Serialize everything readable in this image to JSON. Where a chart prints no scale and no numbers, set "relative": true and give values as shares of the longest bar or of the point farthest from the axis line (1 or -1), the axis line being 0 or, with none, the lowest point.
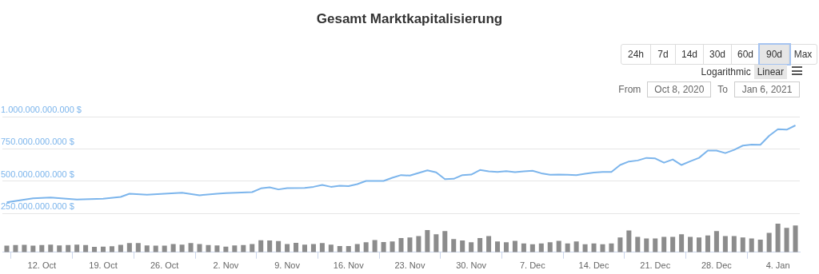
{
  "chart_data": [
    {
      "type": "line",
      "title": "Gesamt Marktkapitalisierung",
      "annotations": [
        "24h",
        "7d",
        "14d",
        "30d",
        "60d",
        "90d",
        "Max",
        "Logarithmic",
        "Linear",
        "From",
        "Oct 8, 2020",
        "To",
        "Jan 6, 2021"
      ],
      "series": [
        {
          "color": "#7cb5ec",
          "x": [
            "2020-10-08",
            "2020-10-11",
            "2020-10-13",
            "2020-10-16",
            "2020-10-19",
            "2020-10-21",
            "2020-10-22",
            "2020-10-24",
            "2020-10-26",
            "2020-10-28",
            "2020-10-30",
            "2020-11-01",
            "2020-11-02",
            "2020-11-05",
            "2020-11-06",
            "2020-11-07",
            "2020-11-08",
            "2020-11-09",
            "2020-11-11",
            "2020-11-12",
            "2020-11-13",
            "2020-11-14",
            "2020-11-15",
            "2020-11-16",
            "2020-11-17",
            "2020-11-18",
            "2020-11-20",
            "2020-11-21",
            "2020-11-22",
            "2020-11-23",
            "2020-11-25",
            "2020-11-26",
            "2020-11-27",
            "2020-11-28",
            "2020-11-29",
            "2020-11-30",
            "2020-12-01",
            "2020-12-02",
            "2020-12-03",
            "2020-12-04",
            "2020-12-05",
            "2020-12-06",
            "2020-12-07",
            "2020-12-08",
            "2020-12-09",
            "2020-12-10",
            "2020-12-11",
            "2020-12-12",
            "2020-12-13",
            "2020-12-14",
            "2020-12-15",
            "2020-12-16",
            "2020-12-17",
            "2020-12-18",
            "2020-12-19",
            "2020-12-20",
            "2020-12-21",
            "2020-12-22",
            "2020-12-23",
            "2020-12-24",
            "2020-12-25",
            "2020-12-26",
            "2020-12-27",
            "2020-12-28",
            "2020-12-29",
            "2020-12-30",
            "2020-12-31",
            "2021-01-01",
            "2021-01-02",
            "2021-01-03",
            "2021-01-04",
            "2021-01-05",
            "2021-01-06"
          ],
          "values": [
            338000000000,
            369000000000,
            375000000000,
            359000000000,
            365000000000,
            379000000000,
            404000000000,
            396000000000,
            404000000000,
            412000000000,
            392000000000,
            404000000000,
            408000000000,
            416000000000,
            445000000000,
            453000000000,
            437000000000,
            447000000000,
            449000000000,
            457000000000,
            472000000000,
            457000000000,
            466000000000,
            462000000000,
            478000000000,
            503000000000,
            503000000000,
            527000000000,
            548000000000,
            544000000000,
            585000000000,
            569000000000,
            517000000000,
            519000000000,
            548000000000,
            552000000000,
            587000000000,
            577000000000,
            572000000000,
            579000000000,
            570000000000,
            577000000000,
            581000000000,
            562000000000,
            550000000000,
            552000000000,
            550000000000,
            548000000000,
            558000000000,
            568000000000,
            572000000000,
            572000000000,
            626000000000,
            653000000000,
            661000000000,
            681000000000,
            677000000000,
            644000000000,
            669000000000,
            626000000000,
            655000000000,
            681000000000,
            737000000000,
            737000000000,
            718000000000,
            743000000000,
            776000000000,
            784000000000,
            782000000000,
            852000000000,
            903000000000,
            899000000000,
            932000000000
          ]
        }
      ],
      "xlim": [
        "2020-10-07T12:00",
        "2021-01-06T12:00"
      ],
      "ylim": [
        250000000000,
        1000000000000
      ],
      "yticks": [
        {
          "value": 250000000000,
          "label": "250.000.000.000 $"
        },
        {
          "value": 500000000000,
          "label": "500.000.000.000 $"
        },
        {
          "value": 750000000000,
          "label": "750.000.000.000 $"
        },
        {
          "value": 1000000000000,
          "label": "1.000.000.000.000 $"
        }
      ],
      "grid": "y",
      "tick_labels": "y"
    },
    {
      "type": "bar",
      "relative": true,
      "color": "#8c8c8c",
      "x": [
        "2020-10-08",
        "2020-10-09",
        "2020-10-10",
        "2020-10-11",
        "2020-10-12",
        "2020-10-13",
        "2020-10-14",
        "2020-10-15",
        "2020-10-16",
        "2020-10-17",
        "2020-10-18",
        "2020-10-19",
        "2020-10-20",
        "2020-10-21",
        "2020-10-22",
        "2020-10-23",
        "2020-10-24",
        "2020-10-25",
        "2020-10-26",
        "2020-10-27",
        "2020-10-28",
        "2020-10-29",
        "2020-10-30",
        "2020-10-31",
        "2020-11-01",
        "2020-11-02",
        "2020-11-03",
        "2020-11-04",
        "2020-11-05",
        "2020-11-06",
        "2020-11-07",
        "2020-11-08",
        "2020-11-09",
        "2020-11-10",
        "2020-11-11",
        "2020-11-12",
        "2020-11-13",
        "2020-11-14",
        "2020-11-15",
        "2020-11-16",
        "2020-11-17",
        "2020-11-18",
        "2020-11-19",
        "2020-11-20",
        "2020-11-21",
        "2020-11-22",
        "2020-11-23",
        "2020-11-24",
        "2020-11-25",
        "2020-11-26",
        "2020-11-27",
        "2020-11-28",
        "2020-11-29",
        "2020-11-30",
        "2020-12-01",
        "2020-12-02",
        "2020-12-03",
        "2020-12-04",
        "2020-12-05",
        "2020-12-06",
        "2020-12-07",
        "2020-12-08",
        "2020-12-09",
        "2020-12-10",
        "2020-12-11",
        "2020-12-12",
        "2020-12-13",
        "2020-12-14",
        "2020-12-15",
        "2020-12-16",
        "2020-12-17",
        "2020-12-18",
        "2020-12-19",
        "2020-12-20",
        "2020-12-21",
        "2020-12-22",
        "2020-12-23",
        "2020-12-24",
        "2020-12-25",
        "2020-12-26",
        "2020-12-27",
        "2020-12-28",
        "2020-12-29",
        "2020-12-30",
        "2020-12-31",
        "2021-01-01",
        "2021-01-02",
        "2021-01-03",
        "2021-01-04",
        "2021-01-05",
        "2021-01-06"
      ],
      "values": [
        0.23,
        0.25,
        0.26,
        0.23,
        0.25,
        0.27,
        0.24,
        0.25,
        0.27,
        0.25,
        0.19,
        0.2,
        0.21,
        0.26,
        0.32,
        0.32,
        0.24,
        0.23,
        0.23,
        0.29,
        0.27,
        0.32,
        0.29,
        0.25,
        0.24,
        0.2,
        0.24,
        0.25,
        0.29,
        0.42,
        0.41,
        0.39,
        0.29,
        0.33,
        0.27,
        0.29,
        0.32,
        0.27,
        0.22,
        0.22,
        0.29,
        0.35,
        0.43,
        0.36,
        0.38,
        0.5,
        0.52,
        0.57,
        0.78,
        0.63,
        0.74,
        0.46,
        0.41,
        0.35,
        0.5,
        0.57,
        0.38,
        0.35,
        0.4,
        0.31,
        0.28,
        0.31,
        0.35,
        0.4,
        0.31,
        0.38,
        0.28,
        0.31,
        0.28,
        0.31,
        0.52,
        0.76,
        0.54,
        0.48,
        0.48,
        0.54,
        0.54,
        0.63,
        0.54,
        0.52,
        0.59,
        0.74,
        0.57,
        0.57,
        0.52,
        0.48,
        0.44,
        0.68,
        1,
        0.85,
        0.94
      ],
      "xlim": [
        "2020-10-07T12:00",
        "2021-01-06T12:00"
      ],
      "xticks": [
        {
          "value": "2020-10-12",
          "label": "12. Oct"
        },
        {
          "value": "2020-10-19",
          "label": "19. Oct"
        },
        {
          "value": "2020-10-26",
          "label": "26. Oct"
        },
        {
          "value": "2020-11-02",
          "label": "2. Nov"
        },
        {
          "value": "2020-11-09",
          "label": "9. Nov"
        },
        {
          "value": "2020-11-16",
          "label": "16. Nov"
        },
        {
          "value": "2020-11-23",
          "label": "23. Nov"
        },
        {
          "value": "2020-11-30",
          "label": "30. Nov"
        },
        {
          "value": "2020-12-07",
          "label": "7. Dec"
        },
        {
          "value": "2020-12-14",
          "label": "14. Dec"
        },
        {
          "value": "2020-12-21",
          "label": "21. Dec"
        },
        {
          "value": "2020-12-28",
          "label": "28. Dec"
        },
        {
          "value": "2021-01-04",
          "label": "4. Jan"
        }
      ],
      "tick_labels": "x"
    }
  ]
}
